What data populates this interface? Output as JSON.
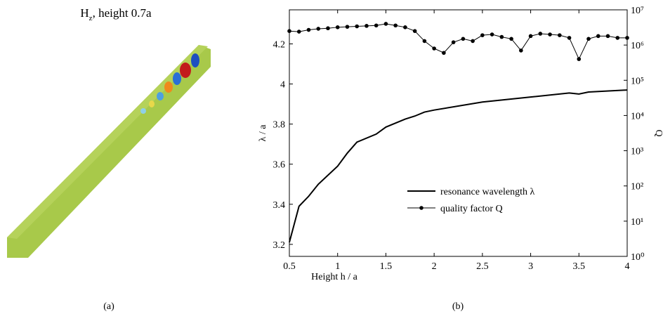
{
  "panel_a": {
    "title": [
      "H",
      "z",
      ", height 0.7a"
    ],
    "caption": "(a)"
  },
  "chart_data": {
    "type": "line",
    "caption": "(b)",
    "xlabel": "Height h / a",
    "ylabel": "λ / a",
    "y2label": "Q",
    "xlim": [
      0.5,
      4
    ],
    "xticks": [
      0.5,
      1,
      1.5,
      2,
      2.5,
      3,
      3.5,
      4
    ],
    "ylim": [
      3.14,
      4.37
    ],
    "yticks": [
      3.2,
      3.4,
      3.6,
      3.8,
      4,
      4.2
    ],
    "y2lim": [
      1,
      10000000
    ],
    "y2scale": "log",
    "y2ticks": [
      {
        "value": 1,
        "label": "10⁰"
      },
      {
        "value": 10,
        "label": "10¹"
      },
      {
        "value": 100,
        "label": "10²"
      },
      {
        "value": 1000,
        "label": "10³"
      },
      {
        "value": 10000,
        "label": "10⁴"
      },
      {
        "value": 100000,
        "label": "10⁵"
      },
      {
        "value": 1000000,
        "label": "10⁶"
      },
      {
        "value": 10000000,
        "label": "10⁷"
      }
    ],
    "series": [
      {
        "name": "resonance wavelength λ",
        "color": "#000000",
        "marker": false,
        "x": [
          0.5,
          0.6,
          0.7,
          0.8,
          1.0,
          1.1,
          1.2,
          1.4,
          1.5,
          1.7,
          1.8,
          1.9,
          2.0,
          2.5,
          3.0,
          3.4,
          3.5,
          3.6,
          4.0
        ],
        "values": [
          3.21,
          3.39,
          3.44,
          3.5,
          3.59,
          3.655,
          3.71,
          3.75,
          3.785,
          3.825,
          3.84,
          3.86,
          3.87,
          3.91,
          3.935,
          3.955,
          3.95,
          3.96,
          3.97
        ]
      },
      {
        "name": "quality factor Q",
        "color": "#000000",
        "marker": true,
        "axis": "y2",
        "x": [
          0.5,
          0.6,
          0.7,
          0.8,
          0.9,
          1.0,
          1.1,
          1.2,
          1.3,
          1.4,
          1.5,
          1.6,
          1.7,
          1.8,
          1.9,
          2.0,
          2.1,
          2.2,
          2.3,
          2.4,
          2.5,
          2.6,
          2.7,
          2.8,
          2.9,
          3.0,
          3.1,
          3.2,
          3.3,
          3.4,
          3.5,
          3.6,
          3.7,
          3.8,
          3.9,
          4.0
        ],
        "values": [
          2500000,
          2400000,
          2700000,
          2900000,
          3000000,
          3200000,
          3300000,
          3400000,
          3500000,
          3600000,
          4000000,
          3600000,
          3200000,
          2500000,
          1300000,
          800000,
          600000,
          1200000,
          1500000,
          1300000,
          1900000,
          2000000,
          1700000,
          1500000,
          700000,
          1800000,
          2100000,
          2000000,
          1900000,
          1600000,
          400000,
          1500000,
          1800000,
          1800000,
          1600000,
          1600000
        ]
      }
    ]
  }
}
